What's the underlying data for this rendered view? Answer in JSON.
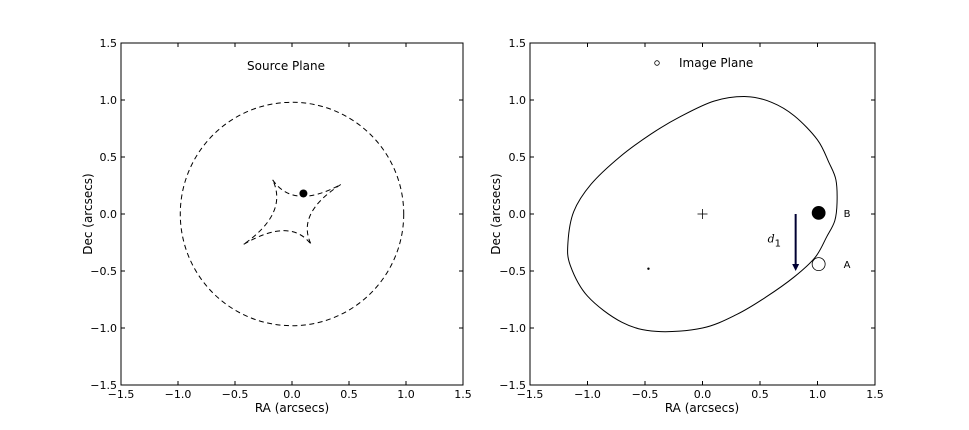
{
  "chart_data": [
    {
      "type": "scatter",
      "title": "Source Plane",
      "xlabel": "RA (arcsecs)",
      "ylabel": "Dec (arcsecs)",
      "xlim": [
        -1.5,
        1.5
      ],
      "ylim": [
        -1.5,
        1.5
      ],
      "xticks": [
        -1.5,
        -1.0,
        -0.5,
        0.0,
        0.5,
        1.0,
        1.5
      ],
      "yticks": [
        -1.5,
        -1.0,
        -0.5,
        0.0,
        0.5,
        1.0,
        1.5
      ],
      "xtick_labels": [
        "−1.5",
        "−1.0",
        "−0.5",
        "0.0",
        "0.5",
        "1.0",
        "1.5"
      ],
      "ytick_labels": [
        "−1.5",
        "−1.0",
        "−0.5",
        "0.0",
        "0.5",
        "1.0",
        "1.5"
      ],
      "grid": false,
      "caustic_circle": {
        "center": [
          0.0,
          0.0
        ],
        "radius": 0.98,
        "style": "dashed"
      },
      "caustic_astroid": {
        "style": "dashed",
        "cusps": [
          [
            -0.17,
            0.3
          ],
          [
            0.43,
            0.26
          ],
          [
            0.17,
            -0.27
          ],
          [
            -0.43,
            -0.27
          ]
        ]
      },
      "source_point": {
        "x": 0.1,
        "y": 0.18
      }
    },
    {
      "type": "scatter",
      "title": "Image Plane",
      "xlabel": "RA (arcsecs)",
      "ylabel": "Dec (arcsecs)",
      "xlim": [
        -1.5,
        1.5
      ],
      "ylim": [
        -1.5,
        1.5
      ],
      "xticks": [
        -1.5,
        -1.0,
        -0.5,
        0.0,
        0.5,
        1.0,
        1.5
      ],
      "yticks": [
        -1.5,
        -1.0,
        -0.5,
        0.0,
        0.5,
        1.0,
        1.5
      ],
      "xtick_labels": [
        "−1.5",
        "−1.0",
        "−0.5",
        "0.0",
        "0.5",
        "1.0",
        "1.5"
      ],
      "ytick_labels": [
        "−1.5",
        "−1.0",
        "−0.5",
        "0.0",
        "0.5",
        "1.0",
        "1.5"
      ],
      "grid": false,
      "critical_curve": {
        "style": "solid",
        "points": [
          [
            0.38,
            1.03
          ],
          [
            0.6,
            0.98
          ],
          [
            0.8,
            0.86
          ],
          [
            1.0,
            0.65
          ],
          [
            1.1,
            0.45
          ],
          [
            1.16,
            0.3
          ],
          [
            1.17,
            0.1
          ],
          [
            1.15,
            -0.06
          ],
          [
            1.08,
            -0.2
          ],
          [
            0.98,
            -0.38
          ],
          [
            0.8,
            -0.55
          ],
          [
            0.55,
            -0.73
          ],
          [
            0.3,
            -0.88
          ],
          [
            0.0,
            -1.0
          ],
          [
            -0.4,
            -1.03
          ],
          [
            -0.7,
            -0.95
          ],
          [
            -1.0,
            -0.72
          ],
          [
            -1.15,
            -0.45
          ],
          [
            -1.17,
            -0.25
          ],
          [
            -1.12,
            0.02
          ],
          [
            -0.97,
            0.26
          ],
          [
            -0.72,
            0.5
          ],
          [
            -0.45,
            0.7
          ],
          [
            -0.2,
            0.85
          ],
          [
            0.1,
            0.99
          ]
        ]
      },
      "lens_center": {
        "x": 0.0,
        "y": 0.0
      },
      "small_image": {
        "x": -0.47,
        "y": -0.48
      },
      "images": [
        {
          "label": "B",
          "x": 1.01,
          "y": 0.01,
          "filled": true
        },
        {
          "label": "A",
          "x": 1.01,
          "y": -0.44,
          "filled": false
        }
      ],
      "delay_arrow": {
        "label": "d",
        "subscript": "1",
        "x": 0.81,
        "y_from": 0.0,
        "y_to": -0.5
      },
      "legend_marker": {
        "shape": "open-circle"
      }
    }
  ]
}
